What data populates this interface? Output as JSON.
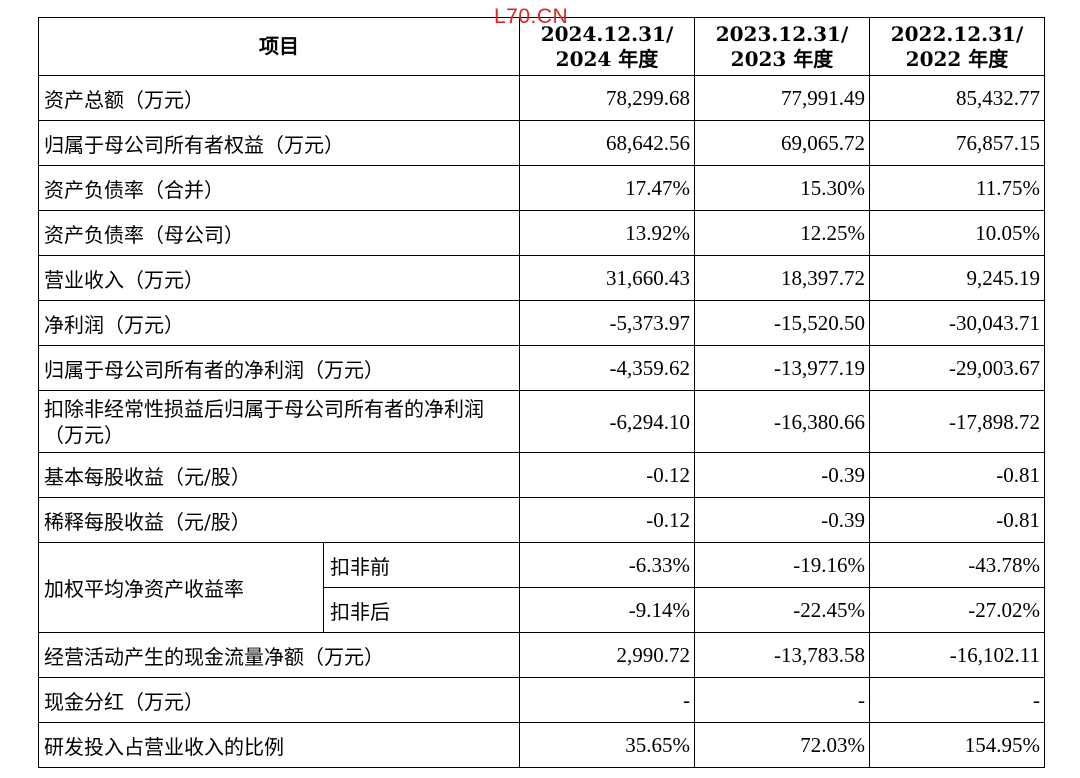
{
  "watermark": "L70.CN",
  "header": {
    "item": "项目",
    "col1_line1": "2024.12.31/",
    "col1_line2": "2024 年度",
    "col2_line1": "2023.12.31/",
    "col2_line2": "2023 年度",
    "col3_line1": "2022.12.31/",
    "col3_line2": "2022 年度"
  },
  "rows": [
    {
      "label": "资产总额（万元）",
      "v": [
        "78,299.68",
        "77,991.49",
        "85,432.77"
      ]
    },
    {
      "label": "归属于母公司所有者权益（万元）",
      "v": [
        "68,642.56",
        "69,065.72",
        "76,857.15"
      ]
    },
    {
      "label": "资产负债率（合并）",
      "v": [
        "17.47%",
        "15.30%",
        "11.75%"
      ]
    },
    {
      "label": "资产负债率（母公司）",
      "v": [
        "13.92%",
        "12.25%",
        "10.05%"
      ]
    },
    {
      "label": "营业收入（万元）",
      "v": [
        "31,660.43",
        "18,397.72",
        "9,245.19"
      ]
    },
    {
      "label": "净利润（万元）",
      "v": [
        "-5,373.97",
        "-15,520.50",
        "-30,043.71"
      ]
    },
    {
      "label": "归属于母公司所有者的净利润（万元）",
      "v": [
        "-4,359.62",
        "-13,977.19",
        "-29,003.67"
      ]
    },
    {
      "label": "扣除非经常性损益后归属于母公司所有者的净利润（万元）",
      "v": [
        "-6,294.10",
        "-16,380.66",
        "-17,898.72"
      ]
    },
    {
      "label": "基本每股收益（元/股）",
      "v": [
        "-0.12",
        "-0.39",
        "-0.81"
      ]
    },
    {
      "label": "稀释每股收益（元/股）",
      "v": [
        "-0.12",
        "-0.39",
        "-0.81"
      ]
    }
  ],
  "roe": {
    "label": "加权平均净资产收益率",
    "before": {
      "label": "扣非前",
      "v": [
        "-6.33%",
        "-19.16%",
        "-43.78%"
      ]
    },
    "after": {
      "label": "扣非后",
      "v": [
        "-9.14%",
        "-22.45%",
        "-27.02%"
      ]
    }
  },
  "rows2": [
    {
      "label": "经营活动产生的现金流量净额（万元）",
      "v": [
        "2,990.72",
        "-13,783.58",
        "-16,102.11"
      ]
    },
    {
      "label": "现金分红（万元）",
      "v": [
        "-",
        "-",
        "-"
      ]
    },
    {
      "label": "研发投入占营业收入的比例",
      "v": [
        "35.65%",
        "72.03%",
        "154.95%"
      ]
    }
  ]
}
